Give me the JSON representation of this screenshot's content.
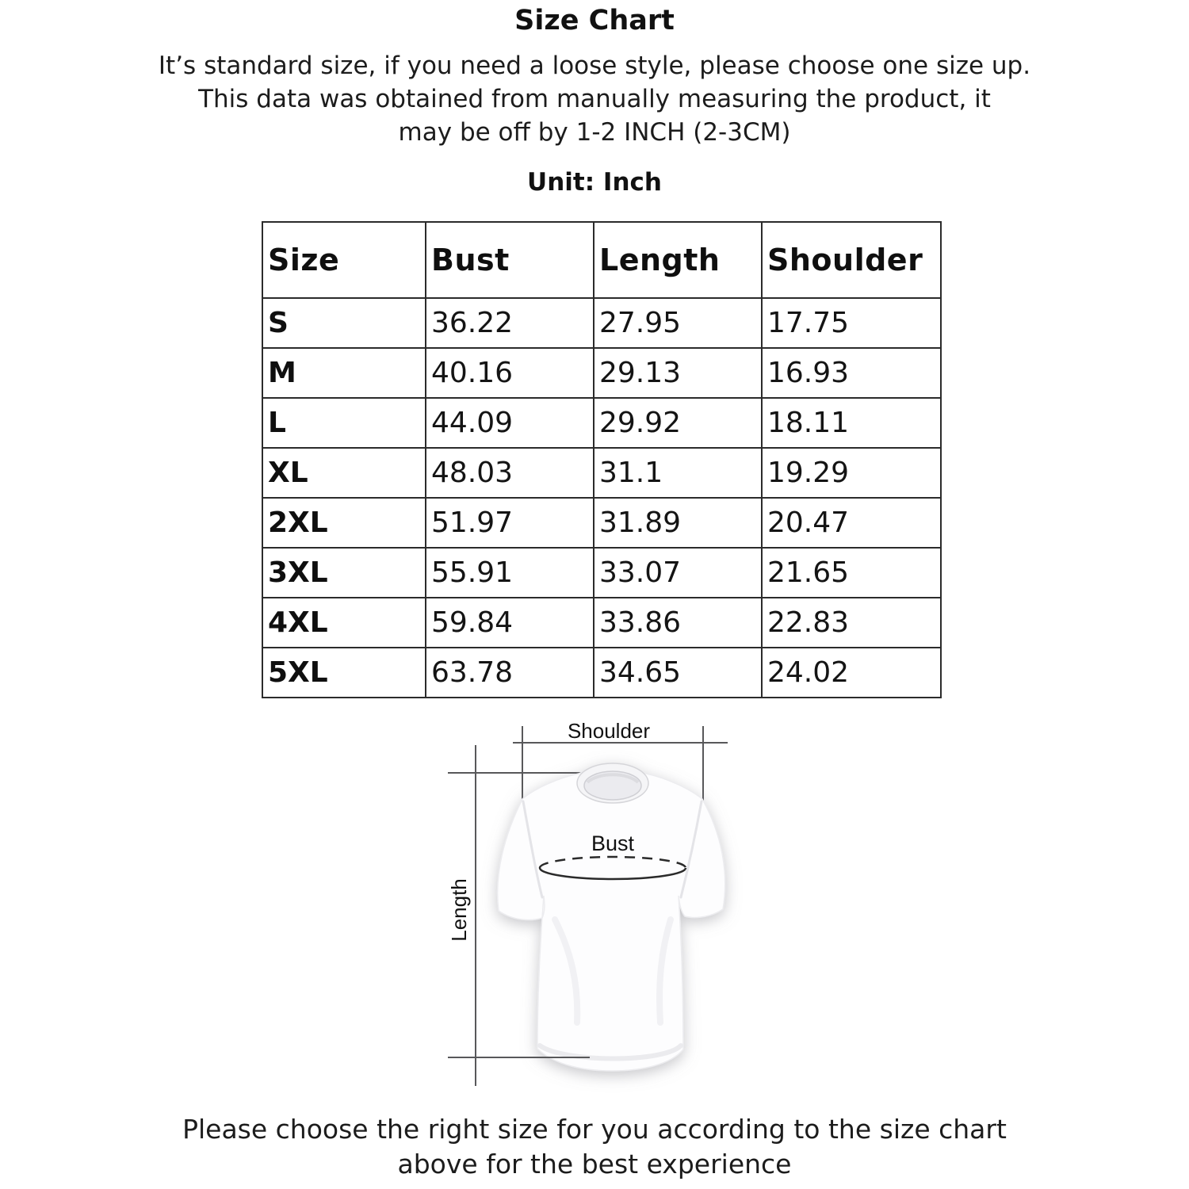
{
  "page": {
    "title": "Size Chart",
    "intro_lines": [
      "It’s standard size, if you need a loose style, please choose one size up.",
      "This data was obtained from manually measuring the product, it",
      "may be off by 1-2 INCH (2-3CM)"
    ],
    "unit_label": "Unit: Inch",
    "footer_lines": [
      "Please choose the right size for you according to the size chart",
      "above for the best experience"
    ]
  },
  "chart_data": {
    "type": "table",
    "title": "Size Chart",
    "unit": "Inch",
    "columns": [
      "Size",
      "Bust",
      "Length",
      "Shoulder"
    ],
    "rows": [
      [
        "S",
        "36.22",
        "27.95",
        "17.75"
      ],
      [
        "M",
        "40.16",
        "29.13",
        "16.93"
      ],
      [
        "L",
        "44.09",
        "29.92",
        "18.11"
      ],
      [
        "XL",
        "48.03",
        "31.1",
        "19.29"
      ],
      [
        "2XL",
        "51.97",
        "31.89",
        "20.47"
      ],
      [
        "3XL",
        "55.91",
        "33.07",
        "21.65"
      ],
      [
        "4XL",
        "59.84",
        "33.86",
        "22.83"
      ],
      [
        "5XL",
        "63.78",
        "34.65",
        "24.02"
      ]
    ]
  },
  "diagram": {
    "shoulder_label": "Shoulder",
    "bust_label": "Bust",
    "length_label": "Length"
  },
  "colors": {
    "text": "#161616",
    "table_border": "#2b2b2b",
    "dimension_line": "#58585a",
    "shirt_fill": "#fdfdfe"
  }
}
